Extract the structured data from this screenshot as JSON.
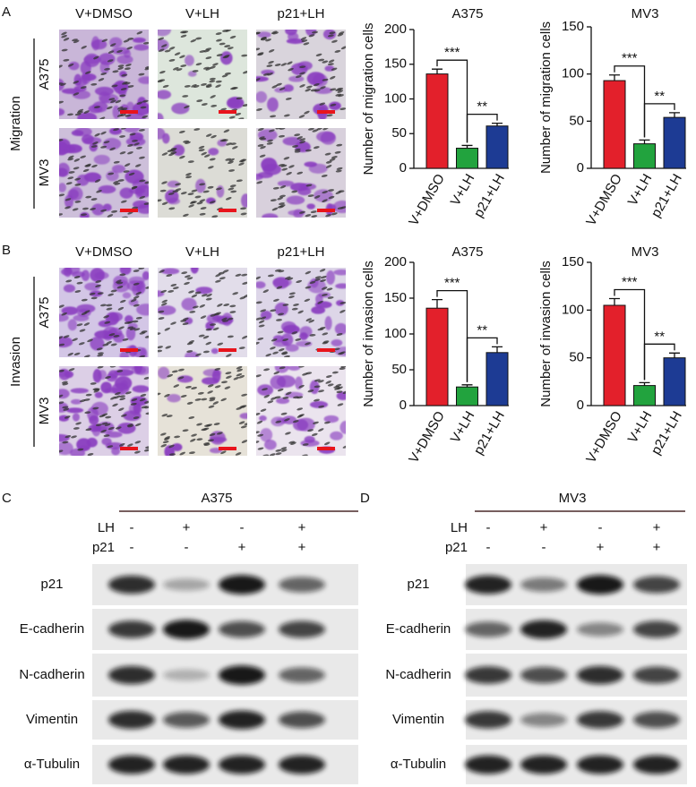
{
  "chart_data": [
    {
      "type": "bar",
      "title": "A375",
      "y_label": "Number of migration cells",
      "categories": [
        "V+DMSO",
        "V+LH",
        "p21+LH"
      ],
      "values": [
        136,
        29,
        61
      ],
      "errors": [
        7,
        4,
        4
      ],
      "colors": [
        "#e3202b",
        "#22a33e",
        "#1d3b94"
      ],
      "ylim": [
        0,
        200
      ],
      "yticks": [
        0,
        50,
        100,
        150,
        200
      ],
      "annotations": [
        "***",
        "**"
      ]
    },
    {
      "type": "bar",
      "title": "MV3",
      "y_label": "Number of migration cells",
      "categories": [
        "V+DMSO",
        "V+LH",
        "p21+LH"
      ],
      "values": [
        93,
        26,
        54
      ],
      "errors": [
        6,
        4,
        5
      ],
      "colors": [
        "#e3202b",
        "#22a33e",
        "#1d3b94"
      ],
      "ylim": [
        0,
        150
      ],
      "yticks": [
        0,
        50,
        100,
        150
      ],
      "annotations": [
        "***",
        "**"
      ]
    },
    {
      "type": "bar",
      "title": "A375",
      "y_label": "Number of invasion cells",
      "categories": [
        "V+DMSO",
        "V+LH",
        "p21+LH"
      ],
      "values": [
        136,
        26,
        74
      ],
      "errors": [
        12,
        3,
        8
      ],
      "colors": [
        "#e3202b",
        "#22a33e",
        "#1d3b94"
      ],
      "ylim": [
        0,
        200
      ],
      "yticks": [
        0,
        50,
        100,
        150,
        200
      ],
      "annotations": [
        "***",
        "**"
      ]
    },
    {
      "type": "bar",
      "title": "MV3",
      "y_label": "Number of invasion cells",
      "categories": [
        "V+DMSO",
        "V+LH",
        "p21+LH"
      ],
      "values": [
        105,
        21,
        50
      ],
      "errors": [
        7,
        3,
        5
      ],
      "colors": [
        "#e3202b",
        "#22a33e",
        "#1d3b94"
      ],
      "ylim": [
        0,
        150
      ],
      "yticks": [
        0,
        50,
        100,
        150
      ],
      "annotations": [
        "***",
        "**"
      ]
    }
  ],
  "panel_a": {
    "letter": "A",
    "group_label": "Migration",
    "columns": [
      "V+DMSO",
      "V+LH",
      "p21+LH"
    ],
    "rows": [
      "A375",
      "MV3"
    ]
  },
  "panel_b": {
    "letter": "B",
    "group_label": "Invasion",
    "columns": [
      "V+DMSO",
      "V+LH",
      "p21+LH"
    ],
    "rows": [
      "A375",
      "MV3"
    ]
  },
  "panel_c": {
    "letter": "C",
    "cell_line": "A375",
    "treatments": [
      {
        "name": "LH",
        "marks": [
          "-",
          "+",
          "-",
          "+"
        ]
      },
      {
        "name": "p21",
        "marks": [
          "-",
          "-",
          "+",
          "+"
        ]
      }
    ],
    "proteins": [
      "p21",
      "E-cadherin",
      "N-cadherin",
      "Vimentin",
      "α-Tubulin"
    ]
  },
  "panel_d": {
    "letter": "D",
    "cell_line": "MV3",
    "treatments": [
      {
        "name": "LH",
        "marks": [
          "-",
          "+",
          "-",
          "+"
        ]
      },
      {
        "name": "p21",
        "marks": [
          "-",
          "-",
          "+",
          "+"
        ]
      }
    ],
    "proteins": [
      "p21",
      "E-cadherin",
      "N-cadherin",
      "Vimentin",
      "α-Tubulin"
    ]
  }
}
